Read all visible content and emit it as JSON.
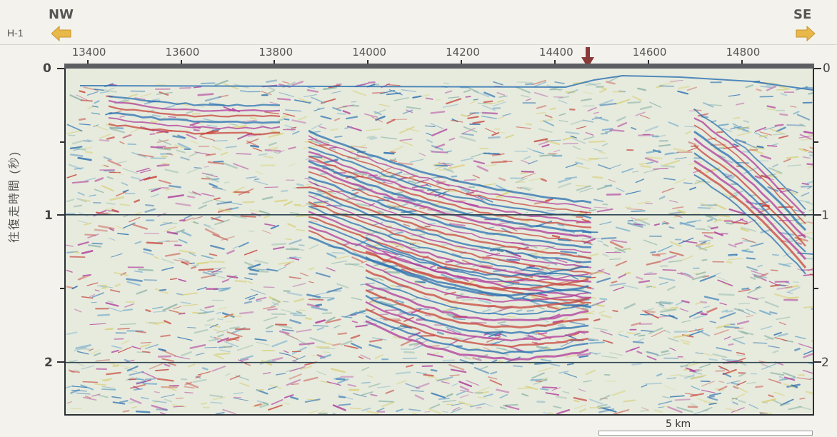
{
  "section": {
    "line_name": "H-1",
    "direction_left": "NW",
    "direction_right": "SE",
    "cdp_labels": [
      "13400",
      "13600",
      "13800",
      "14000",
      "14200",
      "14400",
      "14600",
      "14800"
    ],
    "cdp_range": [
      13350,
      14955
    ],
    "y_axis_label": "往復走時間 (秒)",
    "y_ticks_left": [
      "0",
      "1",
      "2"
    ],
    "y_ticks_right": [
      "0",
      "1",
      "2"
    ],
    "y_range_seconds": [
      0,
      2.35
    ],
    "scale_label": "5 km",
    "marker_cdp": 14470,
    "colors": {
      "arrow_direction": "#e8b84a",
      "arrow_marker": "#8b3a3a",
      "reflector_blue": "#2a6fb0",
      "reflector_magenta": "#b0399a",
      "reflector_red": "#c8453c",
      "background_yellow": "#d9cf78"
    }
  }
}
